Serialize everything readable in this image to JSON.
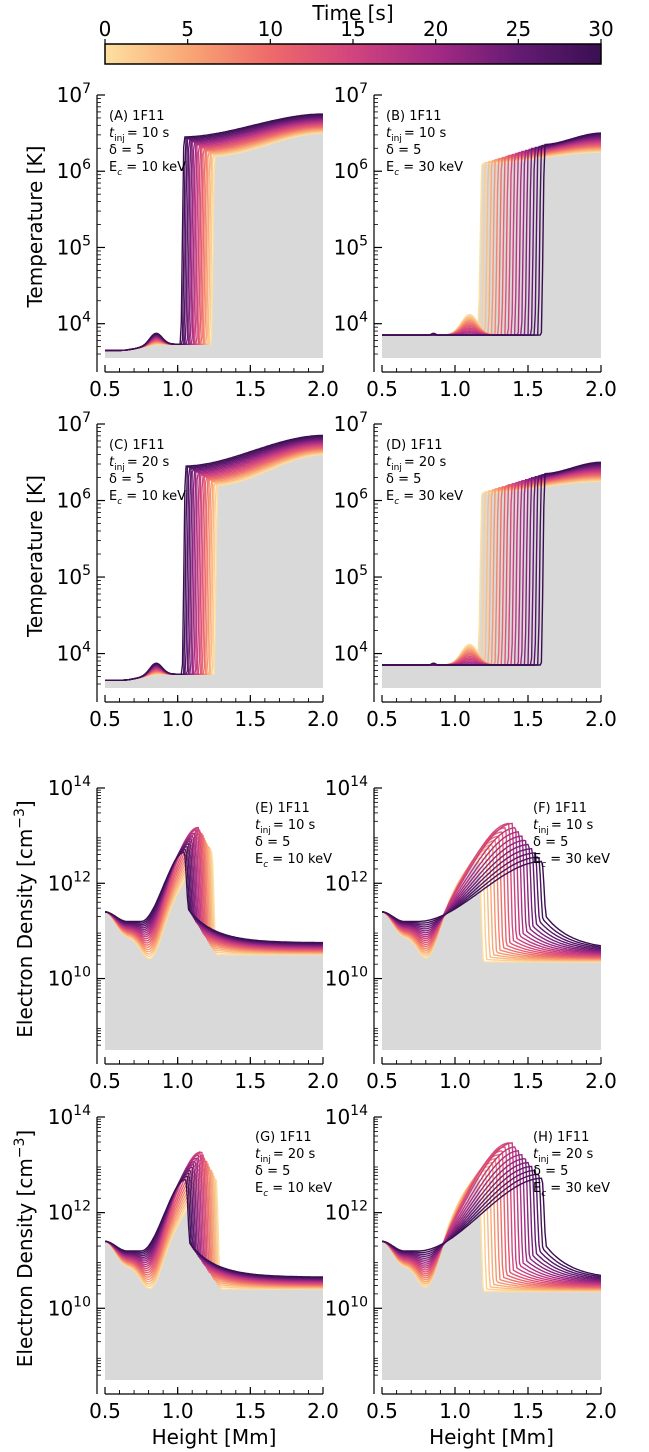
{
  "colorbar": {
    "label": "Time [s]",
    "ticks": [
      "0",
      "5",
      "10",
      "15",
      "20",
      "25",
      "30"
    ],
    "range": [
      0,
      30
    ],
    "colors": [
      "#fde0a0",
      "#f9a774",
      "#ee6a6a",
      "#d1447e",
      "#a42a84",
      "#641b73",
      "#3a0f52"
    ]
  },
  "background_fill": "#d9d9d9",
  "chart_data": [
    {
      "type": "line",
      "panel": "A",
      "ylabel": "Temperature [K]",
      "xlabel": "",
      "xlim": [
        0.5,
        2.0
      ],
      "ylim_log10": [
        3.55,
        7.0
      ],
      "scale": "log",
      "x_ticks": [
        "0.5",
        "1.0",
        "1.5",
        "2.0"
      ],
      "y_ticks": [
        {
          "base": "10",
          "exp": "4"
        },
        {
          "base": "10",
          "exp": "5"
        },
        {
          "base": "10",
          "exp": "6"
        },
        {
          "base": "10",
          "exp": "7"
        }
      ],
      "annotation": [
        "(A) 1F11",
        "t",
        "inj",
        "= 10 s",
        "δ = 5",
        "E",
        "c",
        " = 10 keV"
      ],
      "series_shape": {
        "base_log": 3.65,
        "front_start": 1.24,
        "front_end": 1.03,
        "corona_log": 6.2,
        "corona_end_log": 6.5,
        "plateau": 4.65
      }
    },
    {
      "type": "line",
      "panel": "B",
      "ylabel": "",
      "xlabel": "",
      "xlim": [
        0.5,
        2.0
      ],
      "ylim_log10": [
        3.55,
        7.0
      ],
      "scale": "log",
      "x_ticks": [
        "0.5",
        "1.0",
        "1.5",
        "2.0"
      ],
      "y_ticks": [
        {
          "base": "10",
          "exp": "4"
        },
        {
          "base": "10",
          "exp": "5"
        },
        {
          "base": "10",
          "exp": "6"
        },
        {
          "base": "10",
          "exp": "7"
        }
      ],
      "annotation": [
        "(B) 1F11",
        "t",
        "inj",
        "= 10 s",
        "δ = 5",
        "E",
        "c",
        " = 30 keV"
      ],
      "series_shape": {
        "base_log": 3.65,
        "front_start": 1.17,
        "front_end": 1.6,
        "corona_log": 6.1,
        "corona_end_log": 6.25,
        "plateau": 4.2
      }
    },
    {
      "type": "line",
      "panel": "C",
      "ylabel": "Temperature [K]",
      "xlabel": "",
      "xlim": [
        0.5,
        2.0
      ],
      "ylim_log10": [
        3.55,
        7.0
      ],
      "scale": "log",
      "x_ticks": [
        "0.5",
        "1.0",
        "1.5",
        "2.0"
      ],
      "y_ticks": [
        {
          "base": "10",
          "exp": "4"
        },
        {
          "base": "10",
          "exp": "5"
        },
        {
          "base": "10",
          "exp": "6"
        },
        {
          "base": "10",
          "exp": "7"
        }
      ],
      "annotation": [
        "(C) 1F11",
        "t",
        "inj",
        "= 20 s",
        "δ = 5",
        "E",
        "c",
        " = 10 keV"
      ],
      "series_shape": {
        "base_log": 3.65,
        "front_start": 1.26,
        "front_end": 1.04,
        "corona_log": 6.2,
        "corona_end_log": 6.6,
        "plateau": 4.7
      }
    },
    {
      "type": "line",
      "panel": "D",
      "ylabel": "",
      "xlabel": "",
      "xlim": [
        0.5,
        2.0
      ],
      "ylim_log10": [
        3.55,
        7.0
      ],
      "scale": "log",
      "x_ticks": [
        "0.5",
        "1.0",
        "1.5",
        "2.0"
      ],
      "y_ticks": [
        {
          "base": "10",
          "exp": "4"
        },
        {
          "base": "10",
          "exp": "5"
        },
        {
          "base": "10",
          "exp": "6"
        },
        {
          "base": "10",
          "exp": "7"
        }
      ],
      "annotation": [
        "(D) 1F11",
        "t",
        "inj",
        "= 20 s",
        "δ = 5",
        "E",
        "c",
        " = 30 keV"
      ],
      "series_shape": {
        "base_log": 3.65,
        "front_start": 1.17,
        "front_end": 1.6,
        "corona_log": 6.1,
        "corona_end_log": 6.25,
        "plateau": 4.3
      }
    },
    {
      "type": "line",
      "panel": "E",
      "ylabel": "Electron Density [cm",
      "ylabel_sup": "−3",
      "ylabel_end": "]",
      "xlabel": "",
      "xlim": [
        0.5,
        2.0
      ],
      "ylim_log10": [
        8.5,
        14.0
      ],
      "scale": "log",
      "x_ticks": [
        "0.5",
        "1.0",
        "1.5",
        "2.0"
      ],
      "y_ticks": [
        {
          "base": "10",
          "exp": "10"
        },
        {
          "base": "10",
          "exp": "12"
        },
        {
          "base": "10",
          "exp": "14"
        }
      ],
      "annotation": [
        "(E) 1F11",
        "t",
        "inj",
        "= 10 s",
        "δ = 5",
        "E",
        "c",
        " = 10 keV"
      ],
      "series_shape": {
        "mode": "density",
        "front_start": 1.24,
        "front_end": 1.05,
        "peak_min": 12.3,
        "peak_max": 13.2,
        "tail_log": 10.5
      }
    },
    {
      "type": "line",
      "panel": "F",
      "ylabel": "",
      "xlabel": "",
      "xlim": [
        0.5,
        2.0
      ],
      "ylim_log10": [
        8.5,
        14.0
      ],
      "scale": "log",
      "x_ticks": [
        "0.5",
        "1.0",
        "1.5",
        "2.0"
      ],
      "y_ticks": [
        {
          "base": "10",
          "exp": "10"
        },
        {
          "base": "10",
          "exp": "12"
        },
        {
          "base": "10",
          "exp": "14"
        }
      ],
      "annotation": [
        "(F) 1F11",
        "t",
        "inj",
        "= 10 s",
        "δ = 5",
        "E",
        "c",
        " = 30 keV"
      ],
      "series_shape": {
        "mode": "density",
        "front_start": 1.17,
        "front_end": 1.6,
        "peak_min": 11.9,
        "peak_max": 13.3,
        "tail_log": 10.35
      }
    },
    {
      "type": "line",
      "panel": "G",
      "ylabel": "Electron Density [cm",
      "ylabel_sup": "−3",
      "ylabel_end": "]",
      "xlabel": "Height [Mm]",
      "xlim": [
        0.5,
        2.0
      ],
      "ylim_log10": [
        8.5,
        14.0
      ],
      "scale": "log",
      "x_ticks": [
        "0.5",
        "1.0",
        "1.5",
        "2.0"
      ],
      "y_ticks": [
        {
          "base": "10",
          "exp": "10"
        },
        {
          "base": "10",
          "exp": "12"
        },
        {
          "base": "10",
          "exp": "14"
        }
      ],
      "annotation": [
        "(G) 1F11",
        "t",
        "inj",
        "= 20 s",
        "δ = 5",
        "E",
        "c",
        " = 10 keV"
      ],
      "series_shape": {
        "mode": "density",
        "front_start": 1.27,
        "front_end": 1.06,
        "peak_min": 12.3,
        "peak_max": 13.3,
        "tail_log": 10.4
      }
    },
    {
      "type": "line",
      "panel": "H",
      "ylabel": "",
      "xlabel": "Height [Mm]",
      "xlim": [
        0.5,
        2.0
      ],
      "ylim_log10": [
        8.5,
        14.0
      ],
      "scale": "log",
      "x_ticks": [
        "0.5",
        "1.0",
        "1.5",
        "2.0"
      ],
      "y_ticks": [
        {
          "base": "10",
          "exp": "10"
        },
        {
          "base": "10",
          "exp": "12"
        },
        {
          "base": "10",
          "exp": "14"
        }
      ],
      "annotation": [
        "(H) 1F11",
        "t",
        "inj",
        "= 20 s",
        "δ = 5",
        "E",
        "c",
        " = 30 keV"
      ],
      "series_shape": {
        "mode": "density",
        "front_start": 1.17,
        "front_end": 1.6,
        "peak_min": 12.2,
        "peak_max": 13.5,
        "tail_log": 10.35
      }
    }
  ]
}
